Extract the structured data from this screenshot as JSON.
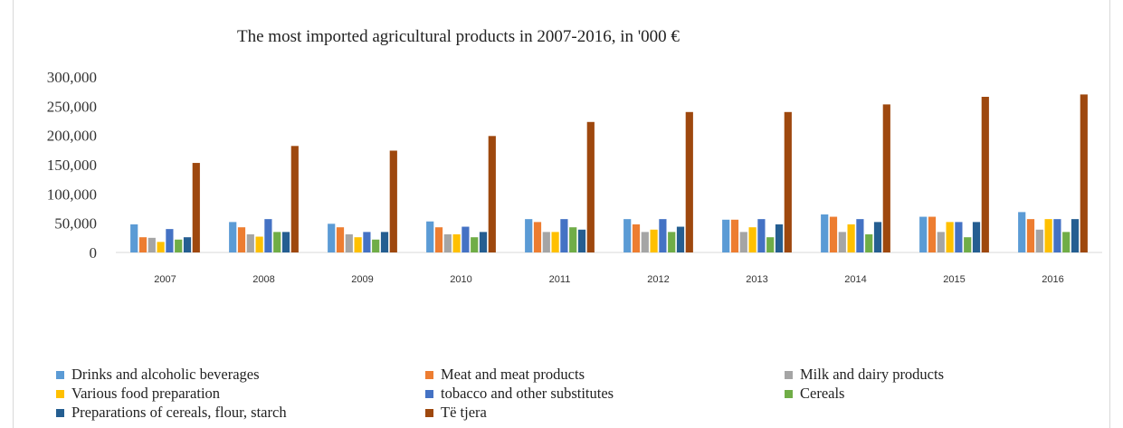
{
  "chart_data": {
    "type": "bar",
    "title": "The most imported agricultural products in 2007-2016, in  '000 €",
    "categories": [
      "2007",
      "2008",
      "2009",
      "2010",
      "2011",
      "2012",
      "2013",
      "2014",
      "2015",
      "2016"
    ],
    "ylim": [
      0,
      300000
    ],
    "yticks": [
      "0",
      "50,000",
      "100,000",
      "150,000",
      "200,000",
      "250,000",
      "300,000"
    ],
    "ytick_values": [
      0,
      50000,
      100000,
      150000,
      200000,
      250000,
      300000
    ],
    "grid": false,
    "legend_position": "bottom",
    "series": [
      {
        "name": "Drinks and alcoholic beverages",
        "color": "#5b9bd5",
        "values": [
          48000,
          52000,
          49000,
          53000,
          57000,
          57000,
          56000,
          65000,
          61000,
          69000
        ]
      },
      {
        "name": "Meat and meat products",
        "color": "#ed7d31",
        "values": [
          26000,
          43000,
          43000,
          43000,
          52000,
          48000,
          56000,
          61000,
          61000,
          57000
        ]
      },
      {
        "name": "Milk and dairy products",
        "color": "#a5a5a5",
        "values": [
          25000,
          31000,
          31000,
          31000,
          35000,
          35000,
          35000,
          35000,
          35000,
          39000
        ]
      },
      {
        "name": "Various food preparation",
        "color": "#ffc000",
        "values": [
          18000,
          27000,
          26000,
          31000,
          35000,
          39000,
          43000,
          48000,
          52000,
          57000
        ]
      },
      {
        "name": "tobacco and other substitutes",
        "color": "#4472c4",
        "values": [
          40000,
          57000,
          35000,
          44000,
          57000,
          57000,
          57000,
          57000,
          52000,
          57000
        ]
      },
      {
        "name": "Cereals",
        "color": "#70ad47",
        "values": [
          22000,
          35000,
          22000,
          26000,
          43000,
          35000,
          26000,
          31000,
          26000,
          35000
        ]
      },
      {
        "name": "Preparations of cereals, flour, starch",
        "color": "#255e91",
        "values": [
          26000,
          35000,
          35000,
          35000,
          39000,
          44000,
          48000,
          52000,
          52000,
          57000
        ]
      },
      {
        "name": "Të tjera",
        "color": "#9e480e",
        "values": [
          153000,
          182000,
          174000,
          199000,
          223000,
          240000,
          240000,
          253000,
          266000,
          270000
        ]
      }
    ]
  }
}
